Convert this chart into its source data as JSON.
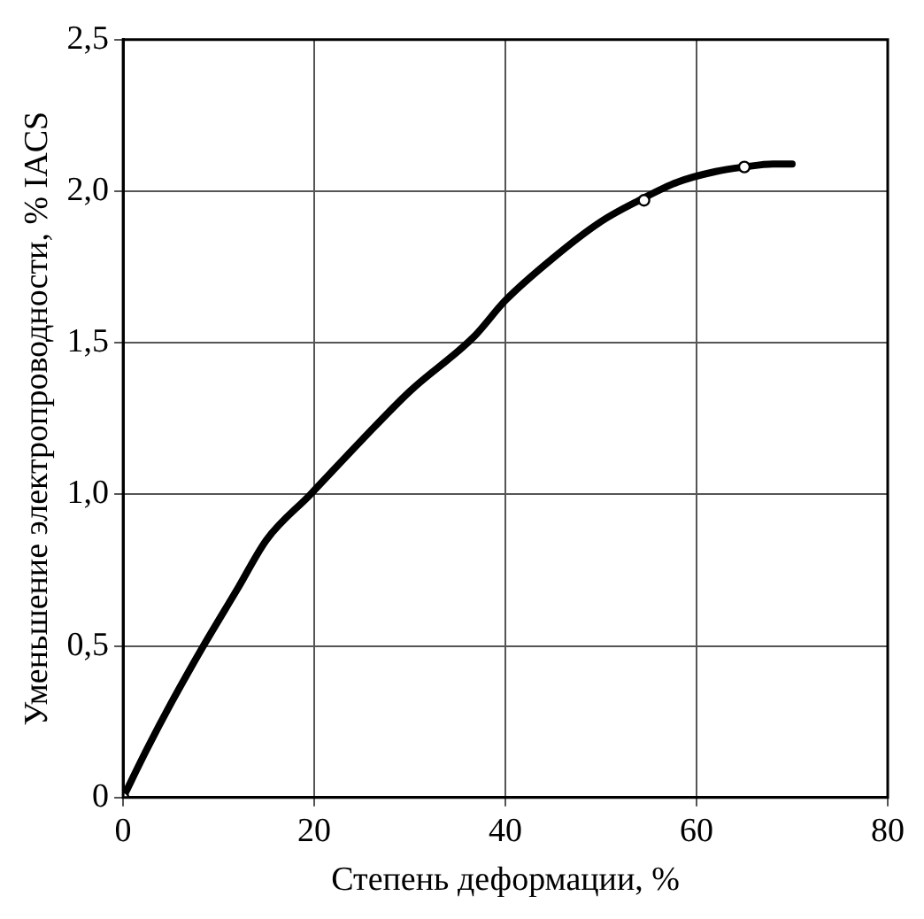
{
  "chart_data": {
    "type": "line",
    "xlabel": "Степень деформации, %",
    "ylabel": "Уменьшение электропроводности, % IACS",
    "xlim": [
      0,
      80
    ],
    "xticks": [
      0,
      20,
      40,
      60,
      80
    ],
    "ylim": [
      0,
      2.5
    ],
    "yticks": [
      0,
      {
        "value": 0.5,
        "label": "0,5"
      },
      {
        "value": 1,
        "label": "1,0"
      },
      {
        "value": 1.5,
        "label": "1,5"
      },
      {
        "value": 2,
        "label": "2,0"
      },
      {
        "value": 2.5,
        "label": "2,5"
      }
    ],
    "grid": true,
    "marker": "none",
    "line_style": "solid",
    "series": [
      {
        "color": "#000000",
        "x": [
          0,
          2.5,
          5,
          8.4,
          12,
          15,
          19.6,
          25,
          30,
          36.7,
          40,
          45,
          50,
          54,
          58,
          62,
          65,
          68,
          70
        ],
        "values": [
          0,
          0.16,
          0.31,
          0.5,
          0.69,
          0.85,
          1.0,
          1.18,
          1.34,
          1.52,
          1.64,
          1.78,
          1.9,
          1.97,
          2.03,
          2.065,
          2.08,
          2.09,
          2.09
        ]
      },
      {
        "type": "scatter",
        "marker": "circle",
        "color": "#000000",
        "x": [
          0,
          54.5,
          65
        ],
        "values": [
          0,
          1.97,
          2.08
        ]
      }
    ]
  }
}
